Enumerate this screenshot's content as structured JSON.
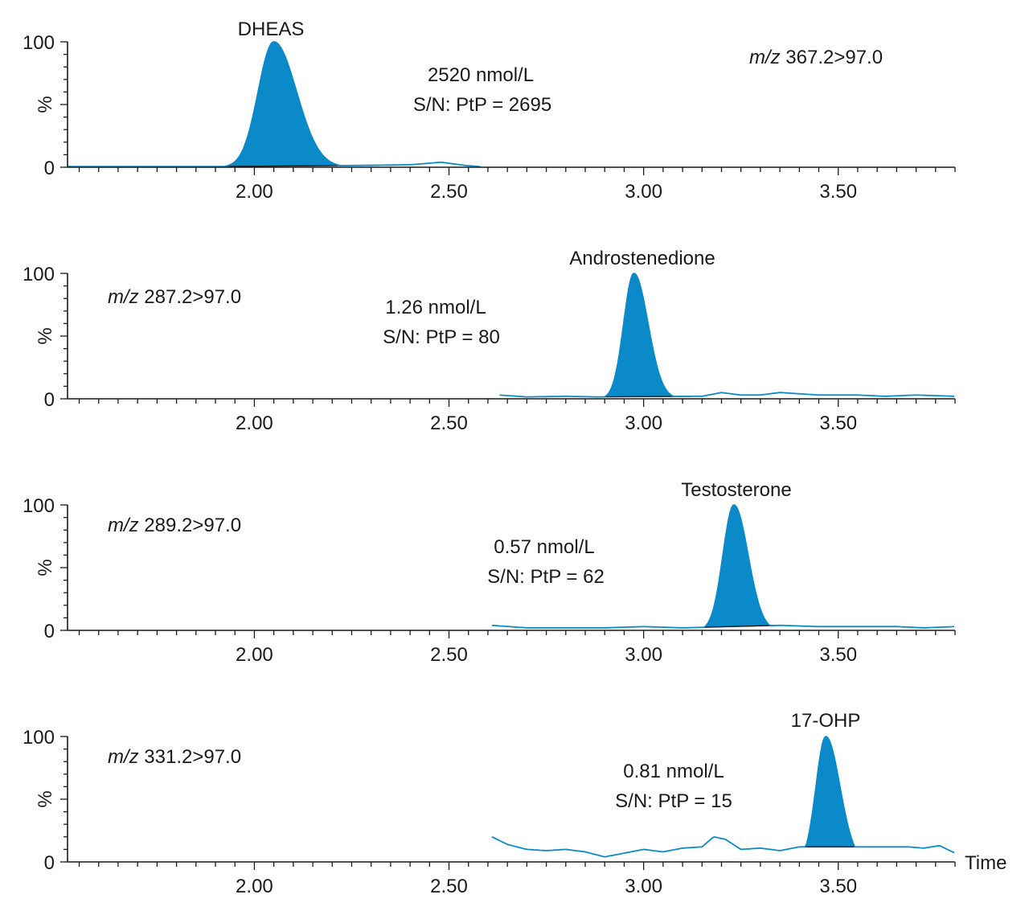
{
  "chart_data": [
    {
      "type": "area",
      "xlabel": "",
      "ylabel": "%",
      "xlim": [
        1.52,
        3.8
      ],
      "ylim": [
        0,
        100
      ],
      "x_ticks": [
        "2.00",
        "2.50",
        "3.00",
        "3.50"
      ],
      "y_ticks": [
        "0",
        "100"
      ],
      "compound": "DHEAS",
      "transition_prefix": "m/z",
      "transition_value": "367.2>97.0",
      "concentration": "2520 nmol/L",
      "signal_to_noise": "S/N: PtP = 2695",
      "trace_start": 1.52,
      "trace_end": 2.58,
      "peak": {
        "rt": 2.05,
        "height": 100,
        "sigma_left": 0.04,
        "sigma_right": 0.058,
        "start": 1.93,
        "end": 2.32
      },
      "noise": [
        [
          1.52,
          0.5
        ],
        [
          1.9,
          0.5
        ],
        [
          2.3,
          1.5
        ],
        [
          2.4,
          2
        ],
        [
          2.48,
          4
        ],
        [
          2.54,
          1.5
        ],
        [
          2.58,
          0.5
        ]
      ],
      "color": "#0a8ac9"
    },
    {
      "type": "area",
      "xlabel": "",
      "ylabel": "%",
      "xlim": [
        1.52,
        3.8
      ],
      "ylim": [
        0,
        100
      ],
      "x_ticks": [
        "2.00",
        "2.50",
        "3.00",
        "3.50"
      ],
      "y_ticks": [
        "0",
        "100"
      ],
      "compound": "Androstenedione",
      "transition_prefix": "m/z",
      "transition_value": "287.2>97.0",
      "concentration": "1.26 nmol/L",
      "signal_to_noise": "S/N: PtP = 80",
      "trace_start": 2.63,
      "trace_end": 3.8,
      "peak": {
        "rt": 2.975,
        "height": 100,
        "sigma_left": 0.026,
        "sigma_right": 0.036,
        "start": 2.9,
        "end": 3.12
      },
      "noise": [
        [
          2.63,
          3
        ],
        [
          2.7,
          1.5
        ],
        [
          2.8,
          2
        ],
        [
          2.88,
          1.5
        ],
        [
          3.15,
          2
        ],
        [
          3.2,
          5
        ],
        [
          3.25,
          3
        ],
        [
          3.3,
          3
        ],
        [
          3.35,
          5
        ],
        [
          3.45,
          3
        ],
        [
          3.55,
          3
        ],
        [
          3.62,
          2
        ],
        [
          3.7,
          3
        ],
        [
          3.8,
          2
        ]
      ],
      "color": "#0a8ac9"
    },
    {
      "type": "area",
      "xlabel": "",
      "ylabel": "%",
      "xlim": [
        1.52,
        3.8
      ],
      "ylim": [
        0,
        100
      ],
      "x_ticks": [
        "2.00",
        "2.50",
        "3.00",
        "3.50"
      ],
      "y_ticks": [
        "0",
        "100"
      ],
      "compound": "Testosterone",
      "transition_prefix": "m/z",
      "transition_value": "289.2>97.0",
      "concentration": "0.57 nmol/L",
      "signal_to_noise": "S/N: PtP = 62",
      "trace_start": 2.61,
      "trace_end": 3.8,
      "peak": {
        "rt": 3.232,
        "height": 100,
        "sigma_left": 0.028,
        "sigma_right": 0.036,
        "start": 3.15,
        "end": 3.35
      },
      "noise": [
        [
          2.61,
          4
        ],
        [
          2.7,
          2
        ],
        [
          2.8,
          2
        ],
        [
          2.9,
          2
        ],
        [
          3.0,
          3
        ],
        [
          3.1,
          2
        ],
        [
          3.35,
          4
        ],
        [
          3.45,
          3
        ],
        [
          3.55,
          3
        ],
        [
          3.65,
          3
        ],
        [
          3.72,
          2
        ],
        [
          3.8,
          3
        ]
      ],
      "color": "#0a8ac9"
    },
    {
      "type": "area",
      "xlabel": "Time",
      "ylabel": "%",
      "xlim": [
        1.52,
        3.8
      ],
      "ylim": [
        0,
        100
      ],
      "x_ticks": [
        "2.00",
        "2.50",
        "3.00",
        "3.50"
      ],
      "y_ticks": [
        "0",
        "100"
      ],
      "compound": "17-OHP",
      "transition_prefix": "m/z",
      "transition_value": "331.2>97.0",
      "concentration": "0.81 nmol/L",
      "signal_to_noise": "S/N: PtP = 15",
      "trace_start": 2.61,
      "trace_end": 3.8,
      "peak": {
        "rt": 3.468,
        "height": 100,
        "sigma_left": 0.025,
        "sigma_right": 0.036,
        "start": 3.4,
        "end": 3.6
      },
      "noise": [
        [
          2.61,
          20
        ],
        [
          2.65,
          14
        ],
        [
          2.7,
          10
        ],
        [
          2.75,
          9
        ],
        [
          2.8,
          10
        ],
        [
          2.85,
          8
        ],
        [
          2.9,
          4
        ],
        [
          2.95,
          7
        ],
        [
          3.0,
          10
        ],
        [
          3.05,
          8
        ],
        [
          3.1,
          11
        ],
        [
          3.15,
          12
        ],
        [
          3.18,
          20
        ],
        [
          3.21,
          18
        ],
        [
          3.25,
          10
        ],
        [
          3.3,
          11
        ],
        [
          3.35,
          9
        ],
        [
          3.4,
          12
        ],
        [
          3.62,
          12
        ],
        [
          3.68,
          12
        ],
        [
          3.72,
          11
        ],
        [
          3.76,
          13
        ],
        [
          3.8,
          7
        ]
      ],
      "color": "#0a8ac9"
    }
  ]
}
